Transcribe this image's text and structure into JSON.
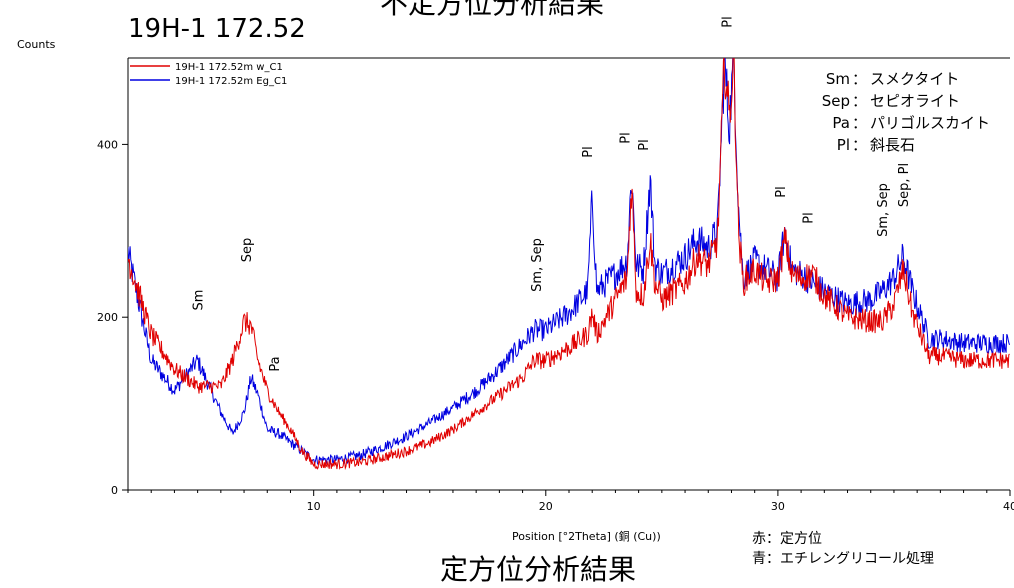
{
  "titles": {
    "top": "不定方位分析結果",
    "sample": "19H-1  172.52",
    "bottom": "定方位分析結果"
  },
  "notes": {
    "red": "赤：定方位",
    "blue": "青：エチレングリコール処理"
  },
  "chart_data": {
    "type": "line",
    "xlabel": "Position [°2Theta] (銅 (Cu))",
    "ylabel": "Counts",
    "xlim": [
      2,
      40
    ],
    "ylim": [
      0,
      500
    ],
    "xticks": [
      10,
      20,
      30,
      40
    ],
    "yticks": [
      0,
      200,
      400
    ],
    "grid": false,
    "legend_position": "top-left",
    "series": [
      {
        "name": "19H-1 172.52m w_C1",
        "color": "#e00000",
        "x": [
          2,
          3,
          4,
          5,
          6,
          6.5,
          7,
          7.3,
          7.6,
          8,
          8.5,
          9,
          9.5,
          10,
          11,
          12,
          13,
          14,
          15,
          16,
          17,
          18,
          19,
          19.5,
          20,
          21,
          21.8,
          22,
          22.2,
          23,
          23.5,
          23.7,
          23.9,
          24.2,
          24.5,
          24.7,
          25,
          26,
          26.5,
          27,
          27.4,
          27.7,
          27.9,
          28.1,
          28.3,
          28.5,
          29,
          29.5,
          30,
          30.3,
          30.6,
          31,
          31.5,
          32,
          33,
          34,
          34.5,
          35,
          35.4,
          35.8,
          36.5,
          37,
          38,
          39,
          40
        ],
        "y": [
          270,
          180,
          140,
          120,
          120,
          150,
          195,
          190,
          150,
          115,
          90,
          70,
          45,
          30,
          30,
          32,
          38,
          45,
          55,
          70,
          90,
          110,
          130,
          150,
          150,
          165,
          180,
          205,
          180,
          220,
          245,
          355,
          230,
          225,
          290,
          240,
          220,
          240,
          270,
          260,
          290,
          500,
          430,
          500,
          300,
          240,
          255,
          240,
          245,
          290,
          250,
          245,
          250,
          225,
          200,
          195,
          195,
          215,
          255,
          205,
          155,
          155,
          150,
          150,
          150
        ]
      },
      {
        "name": "19H-1 172.52m Eg_C1",
        "color": "#0000e0",
        "x": [
          2,
          3,
          4,
          5,
          5.5,
          6,
          6.5,
          7,
          7.3,
          7.6,
          8,
          8.5,
          9,
          9.5,
          10,
          11,
          12,
          13,
          14,
          15,
          16,
          17,
          18,
          19,
          19.5,
          20,
          21,
          21.8,
          22,
          22.2,
          23,
          23.5,
          23.7,
          23.9,
          24.2,
          24.5,
          24.7,
          25,
          26,
          26.5,
          27,
          27.4,
          27.7,
          27.9,
          28.1,
          28.3,
          28.5,
          29,
          29.5,
          30,
          30.3,
          30.6,
          31,
          31.5,
          32,
          33,
          34,
          34.5,
          35,
          35.4,
          35.8,
          36.5,
          37,
          38,
          39,
          40
        ],
        "y": [
          275,
          150,
          115,
          150,
          120,
          90,
          65,
          90,
          130,
          110,
          70,
          65,
          55,
          45,
          35,
          35,
          40,
          50,
          62,
          78,
          95,
          115,
          140,
          170,
          185,
          185,
          205,
          230,
          340,
          230,
          250,
          265,
          365,
          260,
          255,
          360,
          260,
          250,
          270,
          290,
          280,
          300,
          500,
          420,
          500,
          330,
          245,
          265,
          255,
          245,
          300,
          255,
          250,
          240,
          230,
          215,
          220,
          230,
          245,
          270,
          230,
          175,
          175,
          170,
          170,
          170
        ]
      }
    ],
    "annotations": [
      {
        "text": "Sm",
        "x": 5.2
      },
      {
        "text": "Sep",
        "x": 7.3
      },
      {
        "text": "Pa",
        "x": 8.5
      },
      {
        "text": "Sm, Sep",
        "x": 19.8
      },
      {
        "text": "Pl",
        "x": 22
      },
      {
        "text": "Pl",
        "x": 23.6
      },
      {
        "text": "Pl",
        "x": 24.4
      },
      {
        "text": "Pl",
        "x": 28
      },
      {
        "text": "Pl",
        "x": 30.3
      },
      {
        "text": "Pl",
        "x": 31.5
      },
      {
        "text": "Sm, Sep",
        "x": 34.7
      },
      {
        "text": "Sep, Pl",
        "x": 35.6
      }
    ],
    "key": [
      {
        "abbr": "Sm",
        "sep": "：",
        "name": "スメクタイト"
      },
      {
        "abbr": "Sep",
        "sep": "：",
        "name": "セピオライト"
      },
      {
        "abbr": "Pa",
        "sep": "：",
        "name": "パリゴルスカイト"
      },
      {
        "abbr": "Pl",
        "sep": "：",
        "name": "斜長石"
      }
    ]
  }
}
